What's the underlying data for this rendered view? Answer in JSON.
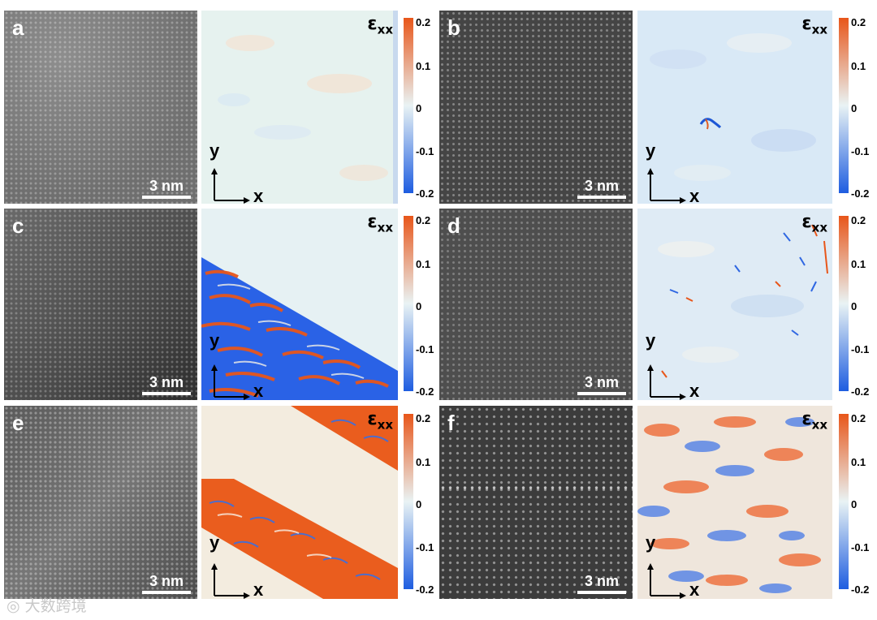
{
  "panels": [
    {
      "letter": "a",
      "scale": "3 nm",
      "eps": "ε",
      "eps_sub": "xx",
      "axis_x": "x",
      "axis_y": "y",
      "ticks": [
        "0.2",
        "0.1",
        "0",
        "-0.1",
        "-0.2"
      ]
    },
    {
      "letter": "b",
      "scale": "3 nm",
      "eps": "ε",
      "eps_sub": "xx",
      "axis_x": "x",
      "axis_y": "y",
      "ticks": [
        "0.2",
        "0.1",
        "0",
        "-0.1",
        "-0.2"
      ]
    },
    {
      "letter": "c",
      "scale": "3 nm",
      "eps": "ε",
      "eps_sub": "xx",
      "axis_x": "x",
      "axis_y": "y",
      "ticks": [
        "0.2",
        "0.1",
        "0",
        "-0.1",
        "-0.2"
      ]
    },
    {
      "letter": "d",
      "scale": "3 nm",
      "eps": "ε",
      "eps_sub": "xx",
      "axis_x": "x",
      "axis_y": "y",
      "ticks": [
        "0.2",
        "0.1",
        "0",
        "-0.1",
        "-0.2"
      ]
    },
    {
      "letter": "e",
      "scale": "3 nm",
      "eps": "ε",
      "eps_sub": "xx",
      "axis_x": "x",
      "axis_y": "y",
      "ticks": [
        "0.2",
        "0.1",
        "0",
        "-0.1",
        "-0.2"
      ]
    },
    {
      "letter": "f",
      "scale": "3 nm",
      "eps": "ε",
      "eps_sub": "xx",
      "axis_x": "x",
      "axis_y": "y",
      "ticks": [
        "0.2",
        "0.1",
        "0",
        "-0.1",
        "-0.2"
      ]
    }
  ],
  "colorbar": {
    "top_color": "#e8561a",
    "mid_color": "#e9f3f4",
    "bottom_color": "#1e5de0",
    "range": [
      -0.2,
      0.2
    ]
  },
  "watermark": "大数跨境"
}
